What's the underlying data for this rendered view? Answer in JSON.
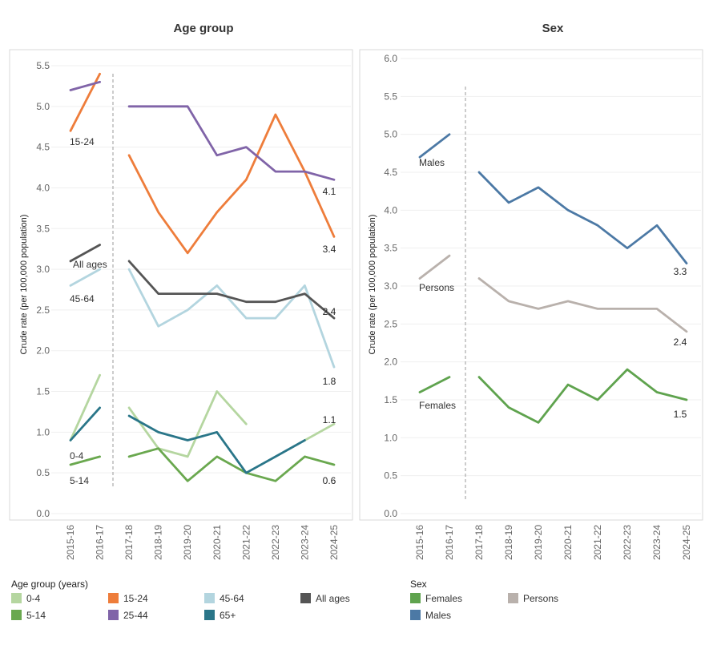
{
  "chart_data": [
    {
      "type": "line",
      "title": "Age group",
      "ylabel": "Crude rate (per 100,000 population)",
      "ylim": [
        0,
        5.5
      ],
      "yticks": [
        "0.0",
        "0.5",
        "1.0",
        "1.5",
        "2.0",
        "2.5",
        "3.0",
        "3.5",
        "4.0",
        "4.5",
        "5.0",
        "5.5"
      ],
      "categories": [
        "2015-16",
        "2016-17",
        "2017-18",
        "2018-19",
        "2019-20",
        "2020-21",
        "2021-22",
        "2022-23",
        "2023-24",
        "2024-25"
      ],
      "break_after": "2016-17",
      "legend_title": "Age group (years)",
      "series": [
        {
          "name": "0-4",
          "color": "#b5d6a0",
          "label": "0-4",
          "values": [
            0.9,
            1.7,
            1.3,
            0.8,
            0.7,
            1.5,
            1.1,
            null,
            0.9,
            1.1
          ],
          "end_label": "1.1"
        },
        {
          "name": "5-14",
          "color": "#6aa84f",
          "label": "5-14",
          "values": [
            0.6,
            0.7,
            0.7,
            0.8,
            0.4,
            0.7,
            0.5,
            0.4,
            0.7,
            0.6
          ],
          "end_label": "0.6"
        },
        {
          "name": "15-24",
          "color": "#ee7d3b",
          "label": "15-24",
          "values": [
            4.7,
            5.4,
            4.4,
            3.7,
            3.2,
            3.7,
            4.1,
            4.9,
            4.2,
            3.4
          ],
          "end_label": "3.4"
        },
        {
          "name": "25-44",
          "color": "#8064a8",
          "label": "",
          "values": [
            5.2,
            5.3,
            5.0,
            5.0,
            5.0,
            4.4,
            4.5,
            4.2,
            4.2,
            4.1
          ],
          "end_label": "4.1"
        },
        {
          "name": "45-64",
          "color": "#b3d5df",
          "label": "45-64",
          "values": [
            2.8,
            3.0,
            3.0,
            2.3,
            2.5,
            2.8,
            2.4,
            2.4,
            2.8,
            1.8
          ],
          "end_label": "1.8"
        },
        {
          "name": "65+",
          "color": "#2a7689",
          "label": "",
          "values": [
            0.9,
            1.3,
            1.2,
            1.0,
            0.9,
            1.0,
            0.5,
            0.7,
            0.9,
            null
          ],
          "end_label": ""
        },
        {
          "name": "All ages",
          "color": "#555555",
          "label": "All ages",
          "values": [
            3.1,
            3.3,
            3.1,
            2.7,
            2.7,
            2.7,
            2.6,
            2.6,
            2.7,
            2.4
          ],
          "end_label": "2.4"
        }
      ]
    },
    {
      "type": "line",
      "title": "Sex",
      "ylabel": "Crude rate (per 100,000 population)",
      "ylim": [
        0,
        6.0
      ],
      "yticks": [
        "0.0",
        "0.5",
        "1.0",
        "1.5",
        "2.0",
        "2.5",
        "3.0",
        "3.5",
        "4.0",
        "4.5",
        "5.0",
        "5.5",
        "6.0"
      ],
      "categories": [
        "2015-16",
        "2016-17",
        "2017-18",
        "2018-19",
        "2019-20",
        "2020-21",
        "2021-22",
        "2022-23",
        "2023-24",
        "2024-25"
      ],
      "break_after": "2016-17",
      "legend_title": "Sex",
      "series": [
        {
          "name": "Females",
          "color": "#5fa34e",
          "label": "Females",
          "values": [
            1.6,
            1.8,
            1.8,
            1.4,
            1.2,
            1.7,
            1.5,
            1.9,
            1.6,
            1.5
          ],
          "end_label": "1.5"
        },
        {
          "name": "Persons",
          "color": "#b9b1ac",
          "label": "Persons",
          "values": [
            3.1,
            3.4,
            3.1,
            2.8,
            2.7,
            2.8,
            2.7,
            2.7,
            2.7,
            2.4
          ],
          "end_label": "2.4"
        },
        {
          "name": "Males",
          "color": "#4c79a5",
          "label": "Males",
          "values": [
            4.7,
            5.0,
            4.5,
            4.1,
            4.3,
            4.0,
            3.8,
            3.5,
            3.8,
            3.3
          ],
          "end_label": "3.3"
        }
      ]
    }
  ]
}
